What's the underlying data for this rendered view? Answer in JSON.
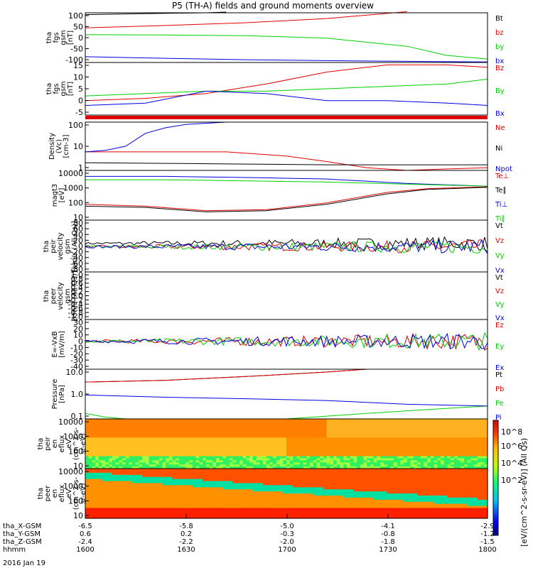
{
  "title": "P5 (TH-A) fields and ground moments overview",
  "date": "2016 Jan 19",
  "colors": {
    "black": "#000000",
    "red": "#e00000",
    "green": "#00d000",
    "blue": "#0000e0",
    "axis": "#000000"
  },
  "x_axis": {
    "rows": [
      {
        "label": "tha_X-GSM",
        "ticks": [
          "-6.5",
          "-5.8",
          "-5.0",
          "-4.1",
          "-2.9"
        ]
      },
      {
        "label": "tha_Y-GSM",
        "ticks": [
          "0.6",
          "0.2",
          "-0.3",
          "-0.8",
          "-1.2"
        ]
      },
      {
        "label": "tha_Z-GSM",
        "ticks": [
          "-2.4",
          "-2.2",
          "-2.0",
          "-1.8",
          "-1.5"
        ]
      },
      {
        "label": "hhmm",
        "ticks": [
          "1600",
          "1630",
          "1700",
          "1730",
          "1800"
        ]
      }
    ],
    "tick_times": [
      1600,
      1630,
      1700,
      1730,
      1800
    ]
  },
  "colorbar": {
    "ticks": [
      "10^8",
      "10^6",
      "10^4",
      "10^2"
    ],
    "label": "[eV/(cm^2-s-sr-eV)] (All Qs)"
  },
  "chart_data": [
    {
      "type": "line",
      "id": "fgs_gsm",
      "ylabel": [
        "tha",
        "fgs",
        "gsm",
        "[nT]"
      ],
      "ylim": [
        -110,
        105
      ],
      "yticks": [
        "100",
        "50",
        "0",
        "-50",
        "-100"
      ],
      "series": [
        {
          "name": "Bt",
          "color": "black",
          "x": [
            0,
            0.1,
            0.2,
            0.3,
            0.35
          ],
          "y": [
            97,
            100,
            103,
            105,
            108
          ]
        },
        {
          "name": "bz",
          "color": "red",
          "x": [
            0,
            0.2,
            0.4,
            0.6,
            0.8
          ],
          "y": [
            40,
            50,
            62,
            80,
            110
          ]
        },
        {
          "name": "by",
          "color": "green",
          "x": [
            0,
            0.2,
            0.4,
            0.6,
            0.8,
            0.9,
            1.0
          ],
          "y": [
            10,
            9,
            6,
            -5,
            -40,
            -80,
            -95
          ]
        },
        {
          "name": "bx",
          "color": "blue",
          "x": [
            0,
            0.2,
            0.4,
            0.6,
            0.8,
            1.0
          ],
          "y": [
            -85,
            -92,
            -98,
            -102,
            -105,
            -108
          ]
        }
      ]
    },
    {
      "type": "line",
      "id": "fgs_gsm_zoom",
      "ylabel": [
        "tha",
        "fgs",
        "gsm",
        "[nT]"
      ],
      "ylim": [
        -7,
        15
      ],
      "yticks": [
        "15",
        "10",
        "5",
        "0",
        "-5"
      ],
      "series": [
        {
          "name": "Bz",
          "color": "red",
          "x": [
            0,
            0.15,
            0.3,
            0.45,
            0.6,
            0.75,
            0.9,
            1.0
          ],
          "y": [
            -1,
            0,
            2,
            6,
            11,
            14,
            14,
            13
          ]
        },
        {
          "name": "By",
          "color": "green",
          "x": [
            0,
            0.15,
            0.3,
            0.45,
            0.6,
            0.75,
            0.9,
            1.0
          ],
          "y": [
            1,
            2,
            3,
            3,
            4,
            5,
            6,
            8
          ]
        },
        {
          "name": "Bx",
          "color": "blue",
          "x": [
            0,
            0.15,
            0.3,
            0.45,
            0.6,
            0.75,
            0.9,
            1.0
          ],
          "y": [
            -3,
            -2,
            3,
            2,
            -1,
            -1,
            -2,
            -3
          ]
        }
      ]
    },
    {
      "type": "line",
      "id": "density",
      "ylabel": [
        "Density",
        "(Vc)",
        "[cm-3]"
      ],
      "ylim": [
        0.5,
        200
      ],
      "log": true,
      "yticks": [
        "100",
        "10",
        "1"
      ],
      "series": [
        {
          "name": "Ne",
          "color": "red",
          "x": [
            0,
            0.2,
            0.35,
            0.5,
            0.6,
            0.7,
            0.8,
            0.9,
            1.0
          ],
          "y": [
            5,
            5,
            5,
            3,
            1.5,
            0.7,
            0.5,
            0.6,
            0.7
          ]
        },
        {
          "name": "Ni",
          "color": "black",
          "x": [
            0,
            0.2,
            0.4,
            0.6,
            0.8,
            1.0
          ],
          "y": [
            1.3,
            1.2,
            1.1,
            1.0,
            1.0,
            1.0
          ]
        },
        {
          "name": "Npot",
          "color": "blue",
          "x": [
            0,
            0.05,
            0.1,
            0.15,
            0.2,
            0.25,
            0.35
          ],
          "y": [
            5,
            6,
            10,
            50,
            100,
            150,
            200
          ]
        }
      ]
    },
    {
      "type": "line",
      "id": "temperature",
      "ylabel": [
        "magt3",
        "[eV]"
      ],
      "ylim": [
        7,
        15000
      ],
      "log": true,
      "yticks": [
        "10000",
        "1000",
        "100",
        "10"
      ],
      "series": [
        {
          "name": "Te⊥",
          "color": "red",
          "x": [
            0,
            0.15,
            0.3,
            0.45,
            0.6,
            0.75,
            0.85,
            1.0
          ],
          "y": [
            80,
            60,
            30,
            35,
            100,
            500,
            900,
            1200
          ]
        },
        {
          "name": "Te∥",
          "color": "black",
          "x": [
            0,
            0.15,
            0.3,
            0.45,
            0.6,
            0.75,
            0.85,
            1.0
          ],
          "y": [
            60,
            50,
            25,
            30,
            80,
            400,
            800,
            1100
          ]
        },
        {
          "name": "Ti⊥",
          "color": "blue",
          "x": [
            0,
            0.2,
            0.4,
            0.6,
            0.8,
            1.0
          ],
          "y": [
            6000,
            6000,
            5000,
            4000,
            2000,
            1300
          ]
        },
        {
          "name": "Ti∥",
          "color": "green",
          "x": [
            0,
            0.2,
            0.4,
            0.6,
            0.8,
            1.0
          ],
          "y": [
            3500,
            3500,
            3000,
            2500,
            1800,
            1300
          ]
        }
      ]
    },
    {
      "type": "line",
      "id": "peir_velocity",
      "ylabel": [
        "tha",
        "peir",
        "velocity",
        "gsm",
        "[km/s (All Qs)]"
      ],
      "ylim": [
        -90,
        95
      ],
      "yticks": [
        "80",
        "60",
        "40",
        "20",
        "0",
        "-20",
        "-40",
        "-60",
        "-80"
      ],
      "series": [
        {
          "name": "Vt",
          "color": "black"
        },
        {
          "name": "Vz",
          "color": "red"
        },
        {
          "name": "Vy",
          "color": "green"
        },
        {
          "name": "Vx",
          "color": "blue"
        }
      ]
    },
    {
      "type": "line",
      "id": "peer_velocity",
      "ylabel": [
        "tha",
        "peer",
        "velocity",
        "gsm",
        "[km/s (All Qs)]"
      ],
      "ylim": [
        -1,
        1
      ],
      "yticks": [
        "1.0",
        "0.8",
        "0.6",
        "0.4",
        "0.2",
        "0.0",
        "-0.2",
        "-0.4",
        "-0.6",
        "-0.8",
        "-1.0"
      ],
      "series": [
        {
          "name": "Vt",
          "color": "black"
        },
        {
          "name": "Vz",
          "color": "red"
        },
        {
          "name": "Vy",
          "color": "green"
        },
        {
          "name": "Vx",
          "color": "blue"
        }
      ]
    },
    {
      "type": "line",
      "id": "efield",
      "ylabel": [
        "E=-VxB",
        "[mV/m]"
      ],
      "ylim": [
        -45,
        35
      ],
      "yticks": [
        "30",
        "20",
        "10",
        "0",
        "-10",
        "-20",
        "-30",
        "-40"
      ],
      "series": [
        {
          "name": "Ez",
          "color": "red"
        },
        {
          "name": "Ey",
          "color": "green"
        },
        {
          "name": "Ex",
          "color": "blue"
        }
      ]
    },
    {
      "type": "line",
      "id": "pressure",
      "ylabel": [
        "Pressure",
        "[nPa]"
      ],
      "ylim": [
        0.04,
        20
      ],
      "log": true,
      "yticks": [
        "10.0",
        "1.0",
        "0.1"
      ],
      "series": [
        {
          "name": "Pt",
          "color": "black",
          "x": [
            0,
            0.2,
            0.4,
            0.6,
            0.7
          ],
          "y": [
            4,
            5,
            8,
            14,
            20
          ]
        },
        {
          "name": "Pb",
          "color": "red",
          "x": [
            0,
            0.2,
            0.4,
            0.6,
            0.7
          ],
          "y": [
            4,
            5,
            8,
            14,
            20
          ]
        },
        {
          "name": "Pe",
          "color": "green",
          "x": [
            0,
            0.05,
            0.1,
            0.3,
            0.5,
            0.7,
            0.9,
            1.0
          ],
          "y": [
            0.08,
            0.05,
            0.04,
            0.04,
            0.04,
            0.08,
            0.15,
            0.2
          ]
        },
        {
          "name": "Pi",
          "color": "blue",
          "x": [
            0,
            0.2,
            0.4,
            0.6,
            0.8,
            1.0
          ],
          "y": [
            0.8,
            0.6,
            0.5,
            0.4,
            0.25,
            0.2
          ]
        }
      ]
    },
    {
      "type": "heatmap",
      "id": "peir_spectrogram",
      "ylabel": [
        "tha",
        "peir",
        "en",
        "eflux",
        "eV",
        "(cm^2-s-",
        "sr-eV)"
      ],
      "ylim": [
        7,
        25000
      ],
      "log": true,
      "yticks": [
        "10000",
        "1000",
        "100",
        "10"
      ]
    },
    {
      "type": "heatmap",
      "id": "peer_spectrogram",
      "ylabel": [
        "tha",
        "peer",
        "en",
        "eflux",
        "eV",
        "(cm^2-s-",
        "sr-eV)"
      ],
      "ylim": [
        5,
        25000
      ],
      "log": true,
      "yticks": [
        "10000",
        "1000",
        "100",
        "10"
      ]
    }
  ]
}
